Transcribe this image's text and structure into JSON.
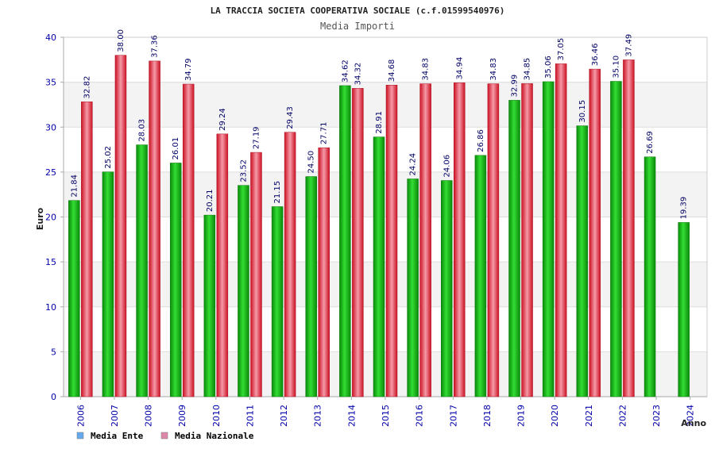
{
  "chart_data": {
    "type": "bar",
    "title": "LA TRACCIA SOCIETA COOPERATIVA SOCIALE (c.f.01599540976)",
    "subtitle": "Media Importi",
    "xlabel": "Anno",
    "ylabel": "Euro",
    "ylim": [
      0,
      40
    ],
    "yticks": [
      "0",
      "5",
      "10",
      "15",
      "20",
      "25",
      "30",
      "35",
      "40"
    ],
    "categories": [
      "2006",
      "2007",
      "2008",
      "2009",
      "2010",
      "2011",
      "2012",
      "2013",
      "2014",
      "2015",
      "2016",
      "2017",
      "2018",
      "2019",
      "2020",
      "2021",
      "2022",
      "2023",
      "2024"
    ],
    "series": [
      {
        "name": "Media Ente",
        "color": "#22cc22",
        "legend_color": "#66aaee",
        "values": [
          21.84,
          25.02,
          28.03,
          26.01,
          20.21,
          23.52,
          21.15,
          24.5,
          34.62,
          28.91,
          24.24,
          24.06,
          26.86,
          32.99,
          35.06,
          30.15,
          35.1,
          26.69,
          19.39
        ],
        "labels": [
          "21.84",
          "25.02",
          "28.03",
          "26.01",
          "20.21",
          "23.52",
          "21.15",
          "24.50",
          "34.62",
          "28.91",
          "24.24",
          "24.06",
          "26.86",
          "32.99",
          "35.06",
          "30.15",
          "35.10",
          "26.69",
          "19.39"
        ]
      },
      {
        "name": "Media Nazionale",
        "color": "#ee3344",
        "legend_color": "#dd88aa",
        "values": [
          32.82,
          38.0,
          37.36,
          34.79,
          29.24,
          27.19,
          29.43,
          27.71,
          34.32,
          34.68,
          34.83,
          34.94,
          34.83,
          34.85,
          37.05,
          36.46,
          37.49,
          null,
          null
        ],
        "labels": [
          "32.82",
          "38.00",
          "37.36",
          "34.79",
          "29.24",
          "27.19",
          "29.43",
          "27.71",
          "34.32",
          "34.68",
          "34.83",
          "34.94",
          "34.83",
          "34.85",
          "37.05",
          "36.46",
          "37.49",
          null,
          null
        ]
      }
    ],
    "grid": true,
    "legend": "bottom-left"
  }
}
